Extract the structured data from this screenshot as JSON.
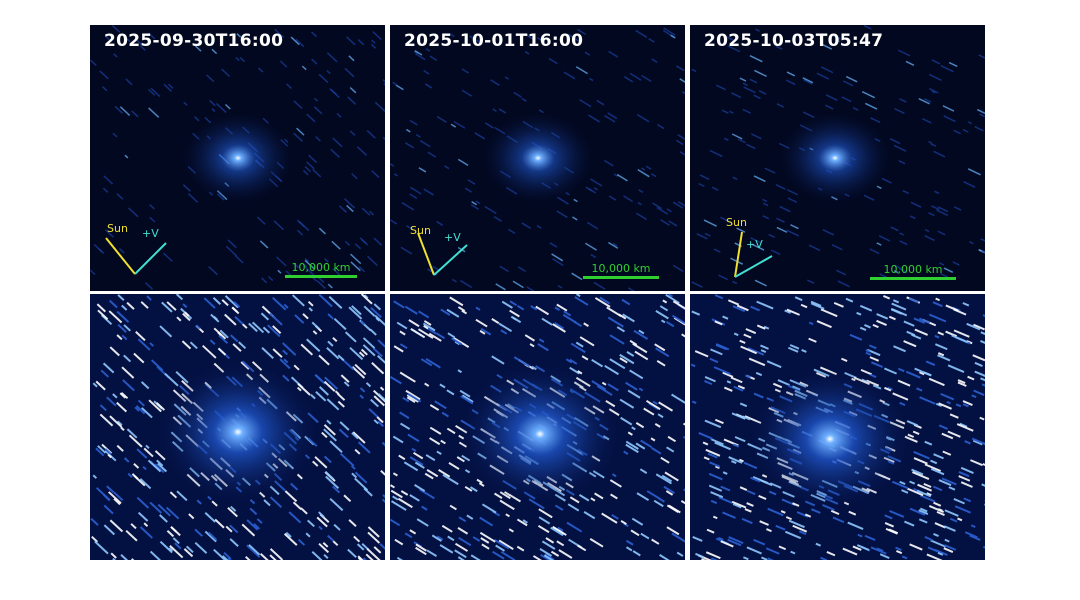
{
  "panels_top": [
    {
      "date": "2025-09-30T16:00",
      "sun_label": "Sun",
      "velocity_label": "+V",
      "scale_label": "10,000 km"
    },
    {
      "date": "2025-10-01T16:00",
      "sun_label": "Sun",
      "velocity_label": "+V",
      "scale_label": "10,000 km"
    },
    {
      "date": "2025-10-03T05:47",
      "sun_label": "Sun",
      "velocity_label": "+V",
      "scale_label": "10,000 km"
    }
  ],
  "colors": {
    "sun_arrow": "#f0e030",
    "velocity_arrow": "#40e0d0",
    "scale_bar": "#30d030",
    "coma": "#3a7bff"
  }
}
